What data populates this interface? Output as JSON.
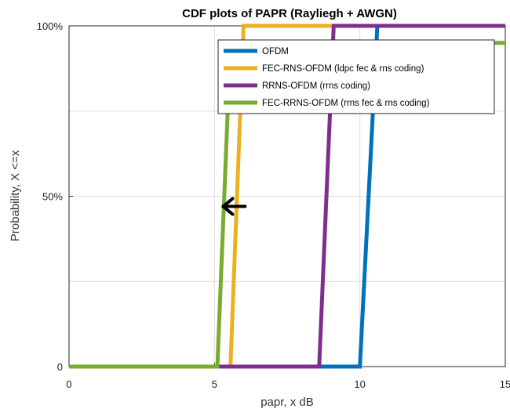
{
  "chart_data": {
    "type": "line",
    "title": "CDF plots of PAPR (Rayliegh + AWGN)",
    "xlabel": "papr, x dB",
    "ylabel": "Probability, X <=x",
    "xlim": [
      0,
      15
    ],
    "ylim": [
      0,
      1
    ],
    "xticks": [
      0,
      5,
      10,
      15
    ],
    "xtick_labels": [
      "0",
      "5",
      "10",
      "15"
    ],
    "yticks": [
      0,
      0.5,
      1
    ],
    "ytick_labels": [
      "0",
      "50%",
      "100%"
    ],
    "grid": true,
    "legend_position": "top-right",
    "series": [
      {
        "name": "OFDM",
        "color": "#0072BD",
        "x": [
          0,
          10.0,
          10.6,
          15.0
        ],
        "y": [
          0,
          0,
          1.0,
          1.0
        ]
      },
      {
        "name": "FEC-RNS-OFDM (ldpc fec & rns coding)",
        "color": "#EDB120",
        "x": [
          0,
          5.55,
          6.0,
          15.0
        ],
        "y": [
          0,
          0,
          1.0,
          1.0
        ]
      },
      {
        "name": "RRNS-OFDM (rrns coding)",
        "color": "#7E2F8E",
        "x": [
          0,
          8.6,
          9.1,
          15.0
        ],
        "y": [
          0,
          0,
          1.0,
          1.0
        ]
      },
      {
        "name": "FEC-RRNS-OFDM (rrns fec & rns coding)",
        "color": "#77AC30",
        "x": [
          0,
          5.1,
          5.55,
          15.0
        ],
        "y": [
          0,
          0,
          0.95,
          0.95
        ]
      }
    ],
    "annotations": [
      {
        "type": "arrow",
        "x": 5.3,
        "y": 0.47,
        "color": "#000000",
        "points": "left"
      }
    ]
  }
}
